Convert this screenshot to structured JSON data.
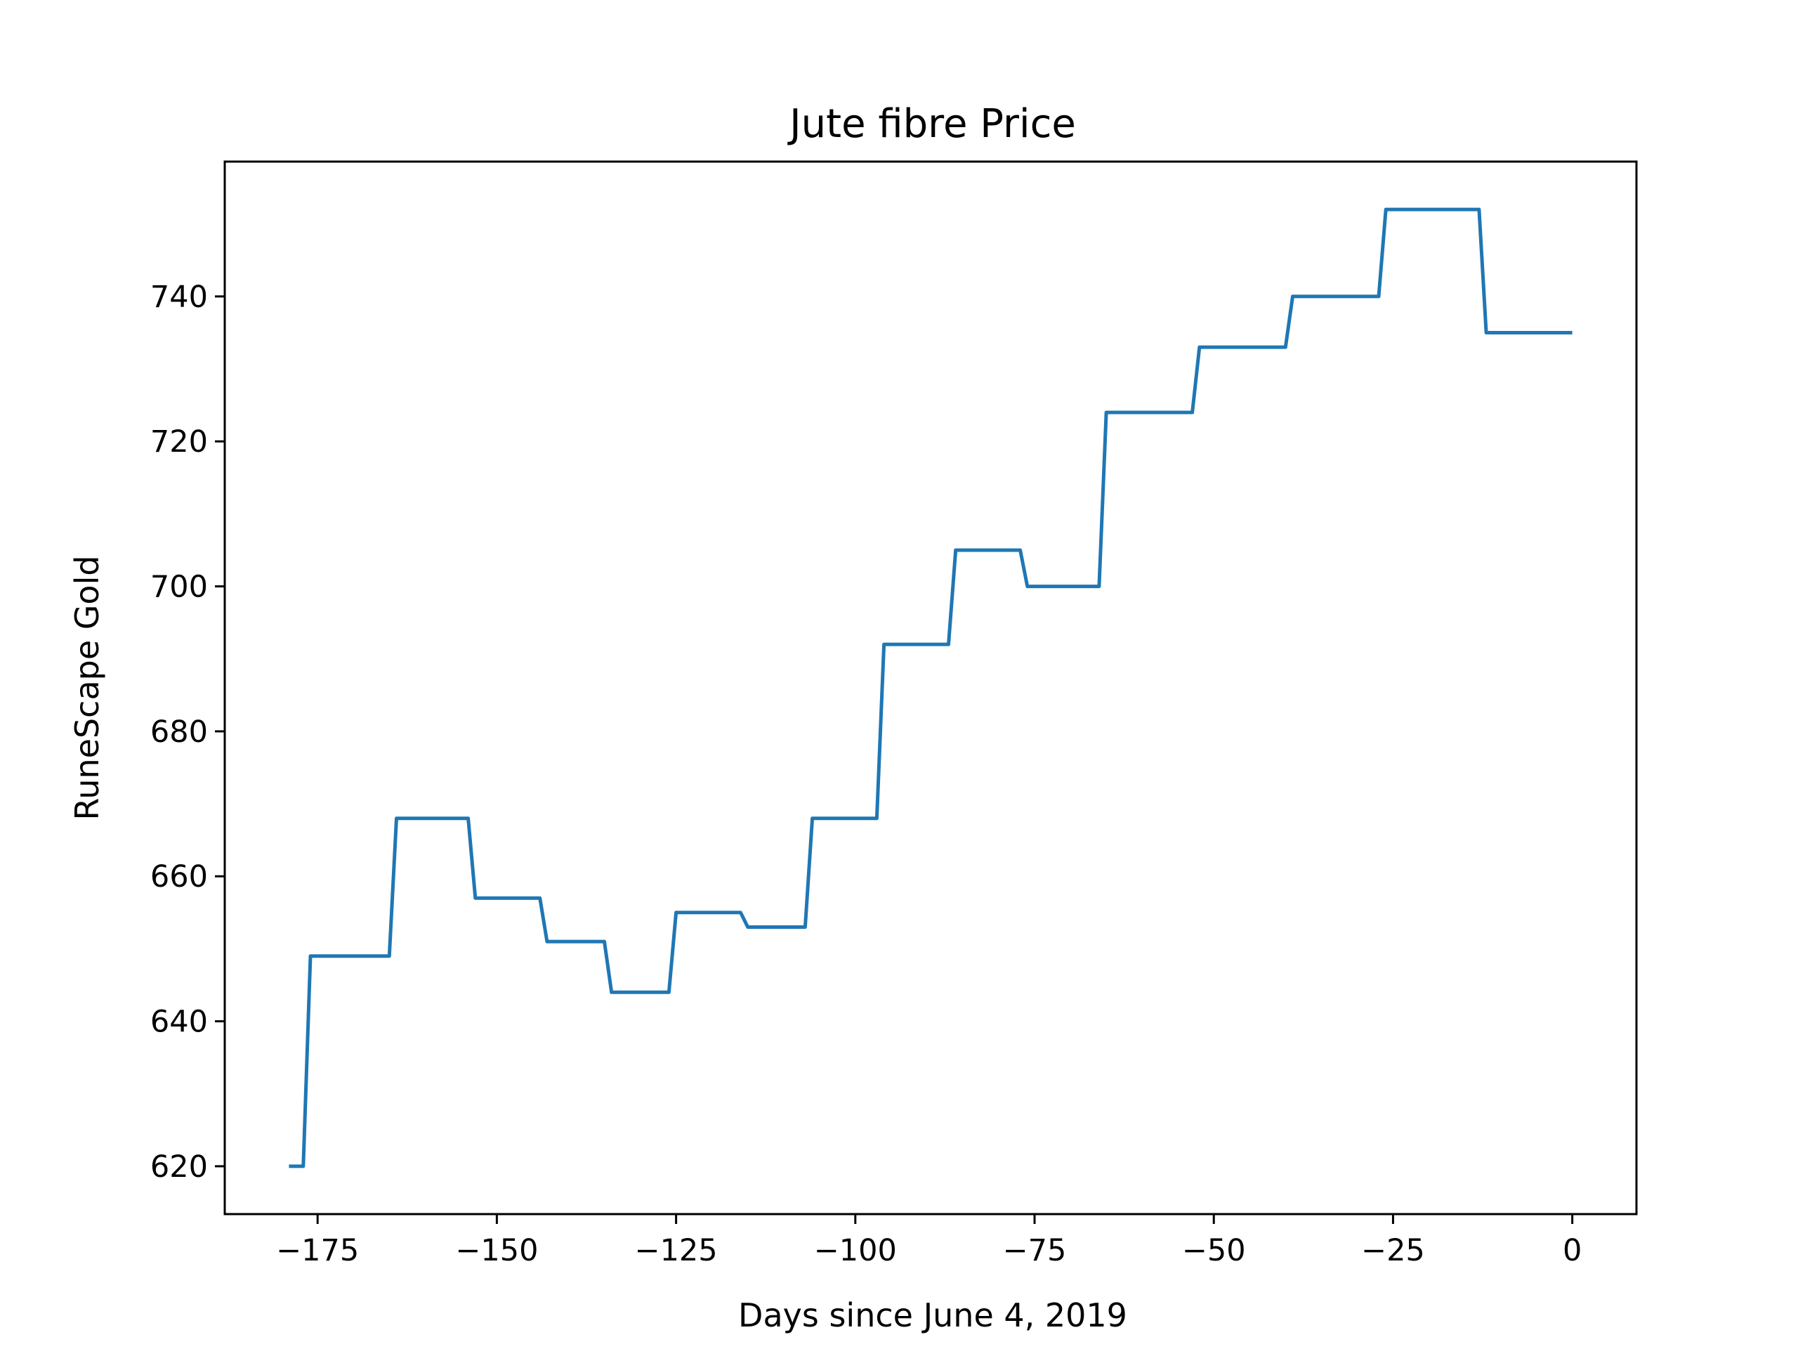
{
  "chart_data": {
    "type": "line",
    "title": "Jute fibre Price",
    "xlabel": "Days since June 4, 2019",
    "ylabel": "RuneScape Gold",
    "xlim": [
      -187.95,
      8.95
    ],
    "ylim": [
      613.4,
      758.6
    ],
    "x_ticks": [
      -175,
      -150,
      -125,
      -100,
      -75,
      -50,
      -25,
      0
    ],
    "x_tick_labels": [
      "−175",
      "−150",
      "−125",
      "−100",
      "−75",
      "−50",
      "−25",
      "0"
    ],
    "y_ticks": [
      620,
      640,
      660,
      680,
      700,
      720,
      740
    ],
    "y_tick_labels": [
      "620",
      "640",
      "660",
      "680",
      "700",
      "720",
      "740"
    ],
    "grid": false,
    "series": [
      {
        "color": "#1f77b4",
        "x": [
          -179,
          -177,
          -176,
          -165,
          -164,
          -154,
          -153,
          -144,
          -143,
          -135,
          -134,
          -126,
          -125,
          -116,
          -115,
          -107,
          -106,
          -97,
          -96,
          -87,
          -86,
          -77,
          -76,
          -66,
          -65,
          -53,
          -52,
          -40,
          -39,
          -27,
          -26,
          -13,
          -12,
          0
        ],
        "y": [
          620,
          620,
          649,
          649,
          668,
          668,
          657,
          657,
          651,
          651,
          644,
          644,
          655,
          655,
          653,
          653,
          668,
          668,
          692,
          692,
          705,
          705,
          700,
          700,
          724,
          724,
          733,
          733,
          740,
          740,
          752,
          752,
          735,
          735
        ]
      }
    ]
  }
}
